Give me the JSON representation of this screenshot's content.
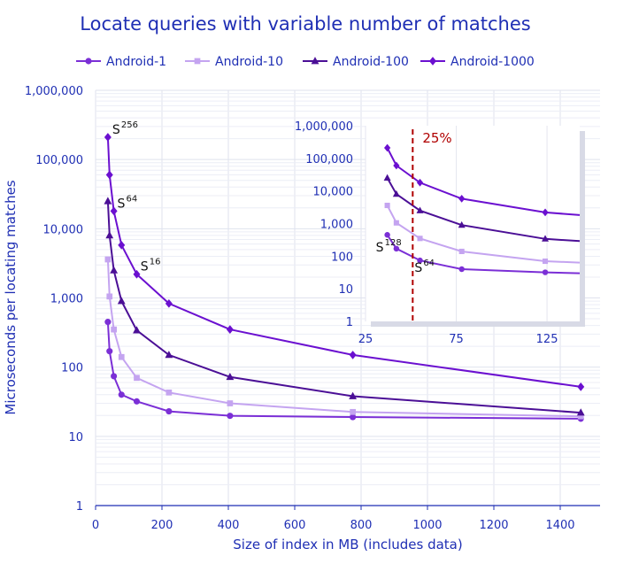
{
  "chart_data": {
    "type": "line",
    "title": "Locate queries with variable number of matches",
    "xlabel": "Size of index in MB (includes data)",
    "ylabel": "Microseconds per locating matches",
    "y_scale": "log",
    "xlim": [
      0,
      1520
    ],
    "ylim": [
      1,
      1000000
    ],
    "x_ticks": [
      "0",
      "200",
      "400",
      "600",
      "800",
      "1000",
      "1200",
      "1400"
    ],
    "y_ticks": [
      "1",
      "10",
      "100",
      "1,000",
      "10,000",
      "100,000",
      "1,000,000"
    ],
    "grid": true,
    "legend_position": "top",
    "colors": {
      "title": "#1f2fb4",
      "Android-1": "#7b2fd6",
      "Android-10": "#c4a4f0",
      "Android-100": "#4b0f96",
      "Android-1000": "#6b10d0",
      "grid": "#dfe2ee",
      "inset_marker": "#b00000"
    },
    "series": [
      {
        "name": "Android-1",
        "marker": "circle",
        "x": [
          37,
          42,
          55,
          78,
          124,
          221,
          405,
          775,
          1462
        ],
        "y": [
          450,
          170,
          74,
          40,
          32,
          23,
          19.8,
          19,
          18
        ]
      },
      {
        "name": "Android-10",
        "marker": "square",
        "x": [
          37,
          42,
          55,
          78,
          124,
          221,
          405,
          775,
          1462
        ],
        "y": [
          3600,
          1050,
          350,
          140,
          70,
          43,
          30,
          22.5,
          19.5
        ]
      },
      {
        "name": "Android-100",
        "marker": "triangle",
        "x": [
          37,
          42,
          55,
          78,
          124,
          221,
          405,
          775,
          1462
        ],
        "y": [
          25000,
          8000,
          2500,
          900,
          340,
          150,
          72,
          38,
          22
        ]
      },
      {
        "name": "Android-1000",
        "marker": "diamond",
        "x": [
          37,
          42,
          55,
          78,
          124,
          221,
          405,
          775,
          1462
        ],
        "y": [
          210000,
          60000,
          18000,
          5800,
          2200,
          830,
          350,
          150,
          52
        ]
      }
    ],
    "annotations": [
      {
        "base": "S",
        "sup": "256",
        "x": 45,
        "y": 210000
      },
      {
        "base": "S",
        "sup": "64",
        "x": 60,
        "y": 18000
      },
      {
        "base": "S",
        "sup": "16",
        "x": 130,
        "y": 2200
      }
    ],
    "inset": {
      "xlim": [
        25,
        143
      ],
      "ylim": [
        1,
        1000000
      ],
      "x_ticks": [
        "25",
        "75",
        "125"
      ],
      "y_ticks": [
        "1",
        "10",
        "100",
        "1,000",
        "10,000",
        "100,000",
        "1,000,000"
      ],
      "vline": {
        "x": 51,
        "label": "25%"
      },
      "annotations": [
        {
          "base": "S",
          "sup": "128",
          "x": 37,
          "y": 170
        },
        {
          "base": "S",
          "sup": "64",
          "x": 51,
          "y": 40
        }
      ]
    }
  }
}
